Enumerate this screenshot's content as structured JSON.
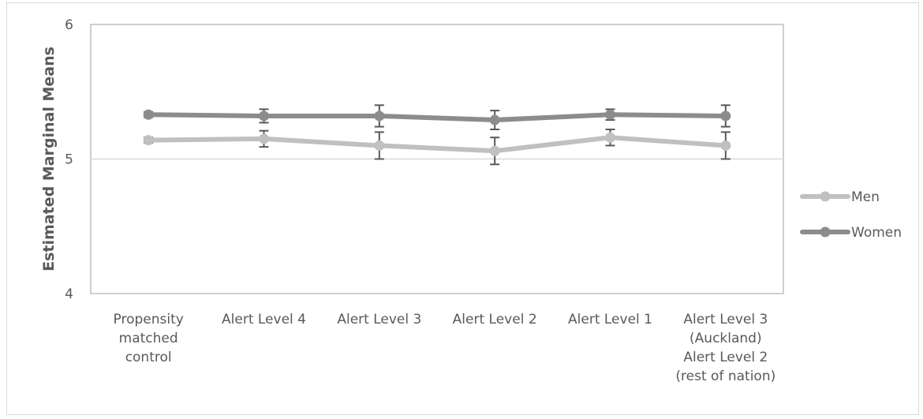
{
  "chart_data": {
    "type": "line",
    "ylabel": "Estimated Marginal Means",
    "ylim": [
      4,
      6
    ],
    "yticks": [
      "4",
      "5",
      "6"
    ],
    "categories": [
      [
        "Propensity",
        "matched",
        "control"
      ],
      [
        "Alert Level 4"
      ],
      [
        "Alert Level 3"
      ],
      [
        "Alert Level 2"
      ],
      [
        "Alert Level 1"
      ],
      [
        "Alert Level 3",
        "(Auckland)",
        "Alert Level 2",
        "(rest of nation)"
      ]
    ],
    "series": [
      {
        "name": "Men",
        "color": "#c0c0c0",
        "values": [
          5.14,
          5.15,
          5.1,
          5.06,
          5.16,
          5.1
        ],
        "err": [
          0.02,
          0.06,
          0.1,
          0.1,
          0.06,
          0.1
        ]
      },
      {
        "name": "Women",
        "color": "#8c8c8c",
        "values": [
          5.33,
          5.32,
          5.32,
          5.29,
          5.33,
          5.32
        ],
        "err": [
          0.02,
          0.05,
          0.08,
          0.07,
          0.04,
          0.08
        ]
      }
    ],
    "grid": true,
    "legend": "right"
  }
}
